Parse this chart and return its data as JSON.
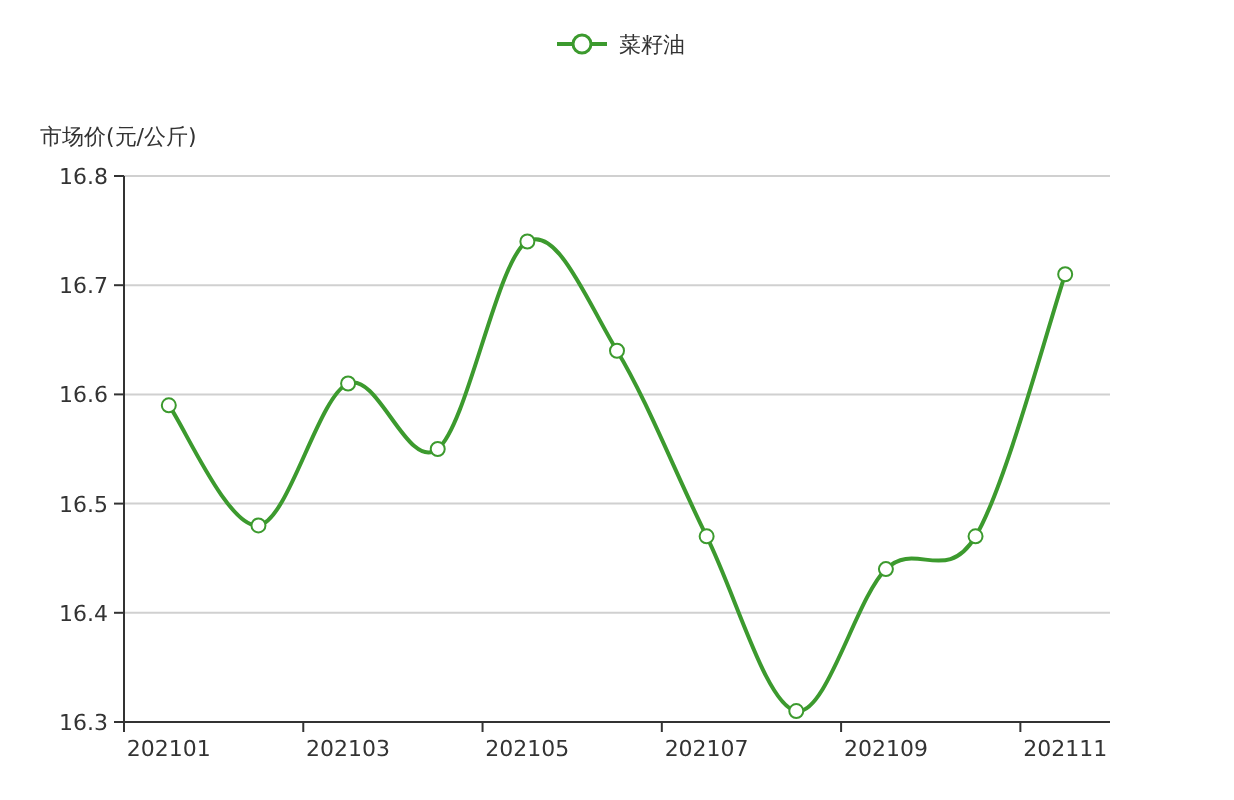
{
  "chart_data": {
    "type": "line",
    "ylabel": "市场价(元/公斤)",
    "categories": [
      "202101",
      null,
      "202103",
      null,
      "202105",
      null,
      "202107",
      null,
      "202109",
      null,
      "202111"
    ],
    "series": [
      {
        "name": "菜籽油",
        "color": "#3c9a2e",
        "values": [
          16.59,
          16.48,
          16.61,
          16.55,
          16.74,
          16.64,
          16.47,
          16.31,
          16.44,
          16.47,
          16.71
        ]
      }
    ],
    "ylim": [
      16.3,
      16.8
    ],
    "yticks": [
      16.3,
      16.4,
      16.5,
      16.6,
      16.7,
      16.8
    ],
    "grid": "y",
    "legend": "top",
    "marker": "circle"
  }
}
